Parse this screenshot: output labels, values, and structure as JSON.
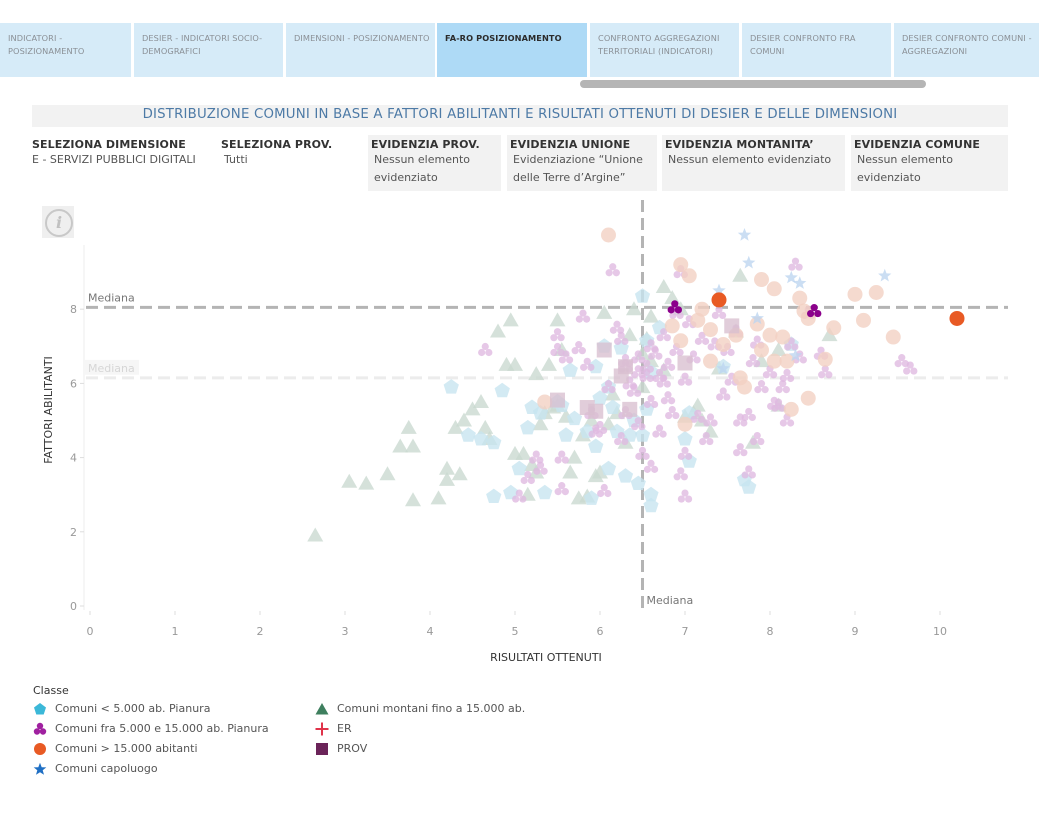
{
  "tabs": [
    {
      "label": "INDICATORI - POSIZIONAMENTO",
      "active": false
    },
    {
      "label": "DESIER - INDICATORI SOCIO-DEMOGRAFICI",
      "active": false
    },
    {
      "label": "DIMENSIONI - POSIZIONAMENTO",
      "active": false
    },
    {
      "label": "FA-RO POSIZIONAMENTO",
      "active": true
    },
    {
      "label": "CONFRONTO AGGREGAZIONI TERRITORIALI (INDICATORI)",
      "active": false
    },
    {
      "label": "DESIER CONFRONTO FRA COMUNI",
      "active": false
    },
    {
      "label": "DESIER CONFRONTO COMUNI - AGGREGAZIONI",
      "active": false
    }
  ],
  "title": "DISTRIBUZIONE COMUNI IN BASE A FATTORI ABILITANTI E RISULTATI OTTENUTI DI DESIER E DELLE DIMENSIONI",
  "filters": [
    {
      "label": "SELEZIONA DIMENSIONE",
      "value": "E - SERVIZI PUBBLICI DIGITALI"
    },
    {
      "label": "SELEZIONA PROV.",
      "value": "Tutti"
    },
    {
      "label": "EVIDENZIA PROV.",
      "value": "Nessun elemento evidenziato"
    },
    {
      "label": "EVIDENZIA UNIONE",
      "value": "Evidenziazione “Unione delle Terre d’Argine”"
    },
    {
      "label": "EVIDENZIA MONTANITA’",
      "value": "Nessun elemento evidenziato"
    },
    {
      "label": "EVIDENZIA COMUNE",
      "value": "Nessun elemento evidenziato"
    }
  ],
  "info_icon": "info-icon",
  "legend": {
    "title": "Classe",
    "items": [
      {
        "label": "Comuni < 5.000 ab. Pianura",
        "shape": "pentagon",
        "color": "#3bb8d8"
      },
      {
        "label": "Comuni fra 5.000 e 15.000 ab. Pianura",
        "shape": "trefoil",
        "color": "#a020a0"
      },
      {
        "label": "Comuni > 15.000 abitanti",
        "shape": "circle",
        "color": "#e85a24"
      },
      {
        "label": "Comuni capoluogo",
        "shape": "star",
        "color": "#1f6fc4"
      },
      {
        "label": "Comuni montani fino a 15.000 ab.",
        "shape": "triangle",
        "color": "#3e7f5e"
      },
      {
        "label": "ER",
        "shape": "plus",
        "color": "#e0334a"
      },
      {
        "label": "PROV",
        "shape": "square",
        "color": "#6b2459"
      }
    ]
  },
  "chart_data": {
    "type": "scatter",
    "title": "DISTRIBUZIONE COMUNI IN BASE A FATTORI ABILITANTI E RISULTATI OTTENUTI DI DESIER E DELLE DIMENSIONI",
    "xlabel": "RISULTATI OTTENUTI",
    "ylabel": "FATTORI ABILITANTI",
    "xlim": [
      0,
      10.8
    ],
    "ylim": [
      0,
      9.5
    ],
    "xticks": [
      "0",
      "1",
      "2",
      "3",
      "4",
      "5",
      "6",
      "7",
      "8",
      "9",
      "10"
    ],
    "yticks": [
      "0",
      "2",
      "4",
      "6",
      "8"
    ],
    "grid": false,
    "legend_position": "bottom-left",
    "reference_lines": [
      {
        "axis": "x",
        "value": 6.5,
        "label": "Mediana",
        "style": "dark-dashed"
      },
      {
        "axis": "y",
        "value": 8.05,
        "label": "Mediana",
        "style": "dark-dashed"
      },
      {
        "axis": "y",
        "value": 6.15,
        "label": "Mediana",
        "style": "light-dashed"
      }
    ],
    "series": [
      {
        "name": "Comuni montani fino a 15.000 ab.",
        "shape": "triangle",
        "faded": true,
        "points": [
          [
            2.65,
            1.9
          ],
          [
            3.05,
            3.35
          ],
          [
            3.25,
            3.3
          ],
          [
            3.5,
            3.55
          ],
          [
            3.75,
            4.8
          ],
          [
            3.65,
            4.3
          ],
          [
            3.8,
            4.3
          ],
          [
            3.8,
            2.85
          ],
          [
            4.1,
            2.9
          ],
          [
            4.2,
            3.4
          ],
          [
            4.2,
            3.7
          ],
          [
            4.35,
            3.55
          ],
          [
            4.3,
            4.8
          ],
          [
            4.4,
            5.0
          ],
          [
            4.5,
            5.3
          ],
          [
            4.6,
            5.5
          ],
          [
            4.65,
            4.8
          ],
          [
            4.7,
            4.5
          ],
          [
            4.8,
            7.4
          ],
          [
            4.95,
            7.7
          ],
          [
            4.9,
            6.5
          ],
          [
            5.0,
            6.5
          ],
          [
            5.0,
            4.1
          ],
          [
            5.1,
            4.1
          ],
          [
            5.15,
            3.0
          ],
          [
            5.2,
            3.8
          ],
          [
            5.25,
            3.6
          ],
          [
            5.3,
            4.9
          ],
          [
            5.35,
            5.2
          ],
          [
            5.4,
            6.5
          ],
          [
            5.45,
            5.35
          ],
          [
            5.5,
            5.4
          ],
          [
            5.6,
            5.1
          ],
          [
            5.65,
            3.6
          ],
          [
            5.7,
            4.0
          ],
          [
            5.75,
            2.9
          ],
          [
            5.8,
            4.6
          ],
          [
            5.85,
            2.95
          ],
          [
            5.9,
            5.0
          ],
          [
            5.95,
            3.5
          ],
          [
            6.0,
            3.6
          ],
          [
            6.05,
            7.9
          ],
          [
            6.1,
            4.9
          ],
          [
            6.15,
            5.7
          ],
          [
            6.2,
            5.2
          ],
          [
            6.3,
            4.4
          ],
          [
            6.35,
            7.3
          ],
          [
            6.4,
            8.0
          ],
          [
            6.5,
            6.8
          ],
          [
            6.55,
            7.2
          ],
          [
            6.6,
            7.8
          ],
          [
            6.75,
            8.6
          ],
          [
            6.85,
            8.3
          ],
          [
            6.95,
            8.0
          ],
          [
            7.0,
            5.1
          ],
          [
            7.1,
            5.2
          ],
          [
            7.15,
            5.4
          ],
          [
            7.2,
            5.0
          ],
          [
            7.3,
            4.7
          ],
          [
            7.4,
            6.4
          ],
          [
            7.6,
            7.4
          ],
          [
            7.65,
            8.9
          ],
          [
            7.8,
            4.4
          ],
          [
            7.9,
            6.6
          ],
          [
            8.1,
            6.9
          ],
          [
            8.1,
            5.4
          ],
          [
            8.7,
            7.3
          ],
          [
            5.5,
            7.7
          ],
          [
            5.55,
            6.9
          ],
          [
            6.6,
            6.6
          ],
          [
            6.75,
            6.35
          ],
          [
            5.25,
            6.25
          ],
          [
            6.5,
            5.9
          ]
        ]
      },
      {
        "name": "Comuni < 5.000 ab. Pianura",
        "shape": "pentagon",
        "faded": true,
        "points": [
          [
            4.25,
            5.9
          ],
          [
            4.45,
            4.6
          ],
          [
            4.6,
            4.5
          ],
          [
            4.75,
            4.4
          ],
          [
            4.75,
            2.95
          ],
          [
            4.85,
            5.8
          ],
          [
            4.95,
            3.05
          ],
          [
            5.15,
            4.8
          ],
          [
            5.2,
            5.35
          ],
          [
            5.3,
            5.2
          ],
          [
            5.5,
            5.5
          ],
          [
            5.55,
            5.4
          ],
          [
            5.6,
            4.6
          ],
          [
            5.65,
            6.35
          ],
          [
            5.85,
            4.7
          ],
          [
            5.9,
            2.9
          ],
          [
            5.95,
            4.3
          ],
          [
            6.0,
            5.6
          ],
          [
            6.05,
            7.0
          ],
          [
            6.1,
            3.7
          ],
          [
            6.15,
            5.35
          ],
          [
            6.2,
            4.7
          ],
          [
            6.3,
            3.5
          ],
          [
            6.35,
            4.6
          ],
          [
            6.4,
            5.0
          ],
          [
            6.45,
            3.3
          ],
          [
            6.5,
            4.6
          ],
          [
            6.55,
            5.3
          ],
          [
            6.6,
            6.3
          ],
          [
            6.6,
            3.0
          ],
          [
            6.6,
            2.7
          ],
          [
            6.5,
            8.35
          ],
          [
            6.55,
            7.15
          ],
          [
            6.7,
            7.5
          ],
          [
            7.0,
            4.5
          ],
          [
            7.05,
            5.2
          ],
          [
            7.05,
            3.9
          ],
          [
            7.45,
            6.45
          ],
          [
            7.7,
            3.4
          ],
          [
            7.75,
            3.2
          ],
          [
            8.25,
            7.05
          ],
          [
            5.7,
            5.05
          ],
          [
            5.95,
            6.45
          ],
          [
            6.25,
            6.95
          ],
          [
            6.1,
            5.9
          ],
          [
            5.05,
            3.7
          ],
          [
            5.35,
            3.05
          ]
        ]
      },
      {
        "name": "Comuni fra 5.000 e 15.000 ab. Pianura",
        "shape": "trefoil",
        "faded": true,
        "points": [
          [
            4.65,
            6.9
          ],
          [
            5.05,
            2.95
          ],
          [
            5.25,
            4.0
          ],
          [
            5.3,
            3.7
          ],
          [
            5.15,
            3.45
          ],
          [
            5.5,
            6.9
          ],
          [
            5.5,
            7.3
          ],
          [
            5.55,
            4.0
          ],
          [
            5.6,
            6.7
          ],
          [
            5.75,
            6.95
          ],
          [
            5.8,
            7.8
          ],
          [
            5.85,
            6.5
          ],
          [
            5.9,
            5.2
          ],
          [
            5.95,
            4.7
          ],
          [
            6.0,
            4.8
          ],
          [
            6.1,
            5.9
          ],
          [
            6.15,
            9.05
          ],
          [
            6.2,
            7.5
          ],
          [
            6.25,
            7.2
          ],
          [
            6.25,
            4.5
          ],
          [
            6.3,
            6.6
          ],
          [
            6.35,
            6.0
          ],
          [
            6.4,
            5.8
          ],
          [
            6.45,
            4.9
          ],
          [
            6.45,
            6.3
          ],
          [
            6.55,
            6.45
          ],
          [
            6.55,
            6.2
          ],
          [
            6.6,
            7.0
          ],
          [
            6.6,
            5.5
          ],
          [
            6.65,
            6.8
          ],
          [
            6.75,
            7.3
          ],
          [
            6.7,
            6.2
          ],
          [
            6.7,
            4.7
          ],
          [
            6.8,
            6.5
          ],
          [
            6.8,
            5.6
          ],
          [
            6.85,
            5.2
          ],
          [
            6.9,
            6.9
          ],
          [
            6.95,
            9.0
          ],
          [
            7.0,
            4.1
          ],
          [
            7.0,
            6.1
          ],
          [
            7.0,
            2.95
          ],
          [
            7.1,
            6.7
          ],
          [
            7.15,
            5.1
          ],
          [
            7.25,
            4.5
          ],
          [
            7.3,
            5.0
          ],
          [
            7.4,
            7.9
          ],
          [
            7.45,
            5.7
          ],
          [
            7.5,
            6.9
          ],
          [
            7.55,
            6.1
          ],
          [
            7.6,
            7.4
          ],
          [
            7.65,
            5.0
          ],
          [
            7.75,
            3.6
          ],
          [
            7.8,
            6.6
          ],
          [
            7.85,
            7.1
          ],
          [
            7.9,
            5.9
          ],
          [
            8.0,
            6.3
          ],
          [
            8.05,
            5.45
          ],
          [
            8.1,
            5.4
          ],
          [
            8.15,
            5.9
          ],
          [
            8.2,
            6.2
          ],
          [
            8.25,
            7.05
          ],
          [
            8.3,
            9.2
          ],
          [
            8.35,
            6.7
          ],
          [
            8.45,
            7.9
          ],
          [
            8.6,
            6.8
          ],
          [
            8.65,
            6.3
          ],
          [
            9.55,
            6.6
          ],
          [
            9.65,
            6.4
          ],
          [
            7.2,
            7.2
          ],
          [
            7.35,
            7.05
          ],
          [
            7.05,
            7.65
          ],
          [
            6.9,
            7.9
          ],
          [
            6.45,
            6.7
          ],
          [
            6.3,
            6.45
          ],
          [
            6.75,
            6.05
          ],
          [
            7.65,
            4.2
          ],
          [
            7.85,
            4.5
          ],
          [
            8.2,
            5.0
          ],
          [
            6.5,
            4.1
          ],
          [
            6.6,
            3.75
          ],
          [
            6.05,
            3.1
          ],
          [
            5.55,
            3.15
          ],
          [
            6.3,
            5.2
          ],
          [
            6.95,
            3.55
          ],
          [
            7.75,
            5.15
          ]
        ]
      },
      {
        "name": "Comuni > 15.000 abitanti",
        "shape": "circle",
        "faded": true,
        "points": [
          [
            6.1,
            10.0
          ],
          [
            6.95,
            9.2
          ],
          [
            7.05,
            8.9
          ],
          [
            7.2,
            8.0
          ],
          [
            7.3,
            7.45
          ],
          [
            7.6,
            7.3
          ],
          [
            7.45,
            7.05
          ],
          [
            7.85,
            7.6
          ],
          [
            8.0,
            7.3
          ],
          [
            7.9,
            6.9
          ],
          [
            8.05,
            6.6
          ],
          [
            8.2,
            6.6
          ],
          [
            8.35,
            8.3
          ],
          [
            8.4,
            7.95
          ],
          [
            8.45,
            7.75
          ],
          [
            8.65,
            6.65
          ],
          [
            8.75,
            7.5
          ],
          [
            9.0,
            8.4
          ],
          [
            9.1,
            7.7
          ],
          [
            9.25,
            8.45
          ],
          [
            9.45,
            7.25
          ],
          [
            8.25,
            5.3
          ],
          [
            8.45,
            5.6
          ],
          [
            7.7,
            5.9
          ],
          [
            7.65,
            6.15
          ],
          [
            7.0,
            4.9
          ],
          [
            5.35,
            5.5
          ],
          [
            6.85,
            7.55
          ],
          [
            7.3,
            6.6
          ],
          [
            7.9,
            8.8
          ],
          [
            8.05,
            8.55
          ],
          [
            7.15,
            7.7
          ],
          [
            8.15,
            7.25
          ],
          [
            6.95,
            7.15
          ]
        ]
      },
      {
        "name": "Comuni capoluogo",
        "shape": "star",
        "faded": true,
        "points": [
          [
            7.7,
            10.0
          ],
          [
            7.75,
            9.25
          ],
          [
            8.25,
            8.85
          ],
          [
            8.35,
            8.7
          ],
          [
            7.4,
            8.5
          ],
          [
            7.85,
            7.75
          ],
          [
            9.35,
            8.9
          ],
          [
            8.3,
            6.75
          ],
          [
            7.45,
            6.4
          ]
        ]
      },
      {
        "name": "PROV",
        "shape": "square",
        "faded": true,
        "points": [
          [
            6.05,
            6.9
          ],
          [
            6.3,
            6.45
          ],
          [
            5.85,
            5.35
          ],
          [
            6.25,
            6.2
          ],
          [
            5.95,
            5.25
          ],
          [
            7.0,
            6.55
          ],
          [
            7.55,
            7.55
          ],
          [
            6.35,
            5.3
          ],
          [
            5.5,
            5.55
          ]
        ]
      },
      {
        "name": "Unione delle Terre d'Argine (evidenziati)",
        "shape": "trefoil",
        "faded": false,
        "color": "#8b008b",
        "points": [
          [
            6.88,
            8.05
          ],
          [
            8.52,
            7.95
          ]
        ]
      },
      {
        "name": "Comuni > 15.000 abitanti (evidenziati)",
        "shape": "circle",
        "faded": false,
        "color": "#e85a24",
        "points": [
          [
            7.4,
            8.25
          ],
          [
            10.2,
            7.75
          ]
        ]
      }
    ]
  }
}
